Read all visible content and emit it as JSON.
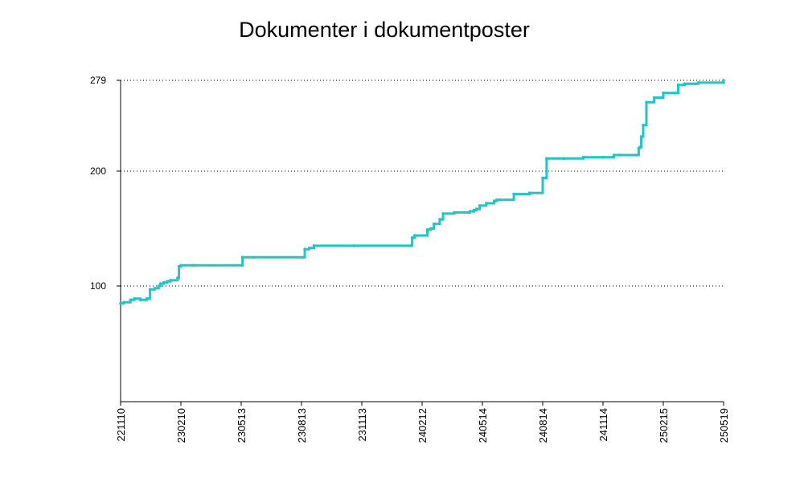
{
  "chart_data": {
    "type": "line",
    "title": "Dokumenter i dokumentposter",
    "xlabel": "",
    "ylabel": "",
    "x_ticks": [
      "221110",
      "230210",
      "230513",
      "230813",
      "231113",
      "240212",
      "240514",
      "240814",
      "241114",
      "250215",
      "250519"
    ],
    "y_ticks": [
      100,
      200,
      279
    ],
    "ylim": [
      0,
      279
    ],
    "grid": "dotted horizontal lines at y ticks",
    "line_color": "#22c4c4",
    "series": [
      {
        "x": [
          "2022-11-10",
          "2022-11-15",
          "2022-11-25",
          "2022-12-01",
          "2022-12-10",
          "2022-12-20",
          "2022-12-25",
          "2023-01-01",
          "2023-01-07",
          "2023-01-10",
          "2023-01-15",
          "2023-01-20",
          "2023-01-25",
          "2023-02-05",
          "2023-02-07",
          "2023-02-10",
          "2023-03-01",
          "2023-05-13",
          "2023-05-15",
          "2023-06-01",
          "2023-08-15",
          "2023-08-18",
          "2023-08-25",
          "2023-09-01",
          "2023-11-01",
          "2024-01-25",
          "2024-01-28",
          "2024-02-01",
          "2024-02-20",
          "2024-02-25",
          "2024-03-01",
          "2024-03-10",
          "2024-03-15",
          "2024-04-01",
          "2024-04-25",
          "2024-05-01",
          "2024-05-05",
          "2024-05-10",
          "2024-05-20",
          "2024-06-01",
          "2024-06-05",
          "2024-06-10",
          "2024-07-01",
          "2024-07-25",
          "2024-08-14",
          "2024-08-20",
          "2024-09-15",
          "2024-10-15",
          "2024-11-14",
          "2024-12-01",
          "2024-12-10",
          "2025-01-05",
          "2025-01-08",
          "2025-01-10",
          "2025-01-12",
          "2025-01-15",
          "2025-01-20",
          "2025-02-01",
          "2025-02-15",
          "2025-03-05",
          "2025-03-10",
          "2025-03-20",
          "2025-04-05",
          "2025-04-10",
          "2025-05-19"
        ],
        "values": [
          85,
          86,
          88,
          89,
          88,
          89,
          97,
          98,
          100,
          102,
          103,
          104,
          105,
          107,
          117,
          118,
          118,
          118,
          125,
          125,
          125,
          132,
          133,
          135,
          135,
          135,
          142,
          144,
          149,
          150,
          154,
          158,
          163,
          164,
          165,
          166,
          167,
          170,
          172,
          174,
          175,
          175,
          180,
          181,
          194,
          211,
          211,
          212,
          212,
          214,
          214,
          214,
          220,
          221,
          230,
          240,
          260,
          264,
          268,
          268,
          275,
          276,
          276,
          277,
          279
        ]
      }
    ]
  }
}
